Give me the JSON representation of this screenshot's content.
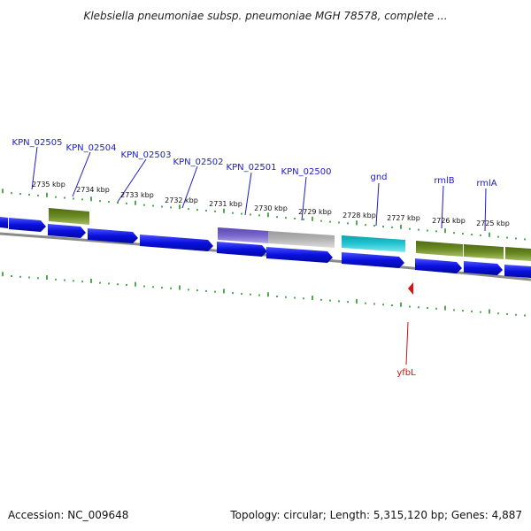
{
  "title": "Klebsiella pneumoniae subsp. pneumoniae MGH 78578, complete ...",
  "footer": {
    "accession": "Accession: NC_009648",
    "summary": "Topology: circular; Length: 5,315,120 bp; Genes: 4,887"
  },
  "gene_labels": [
    "KPN_02505",
    "KPN_02504",
    "KPN_02503",
    "KPN_02502",
    "KPN_02501",
    "KPN_02500",
    "gnd",
    "rmlB",
    "rmlA"
  ],
  "kbp_labels": [
    "2735 kbp",
    "2734 kbp",
    "2733 kbp",
    "2732 kbp",
    "2731 kbp",
    "2730 kbp",
    "2729 kbp",
    "2728 kbp",
    "2727 kbp",
    "2726 kbp",
    "2725 kbp"
  ],
  "red_label": "yfbL",
  "colors": {
    "cds_blue": "#0a10dd",
    "olive": "#6b8a22",
    "purple": "#7a66cc",
    "grey": "#b4b4b4",
    "cyan": "#22c6d2",
    "tick_green": "#1a8a1a",
    "backbone": "#8a8a8a",
    "label_blue": "#1a1acc",
    "label_red": "#cc1111"
  }
}
